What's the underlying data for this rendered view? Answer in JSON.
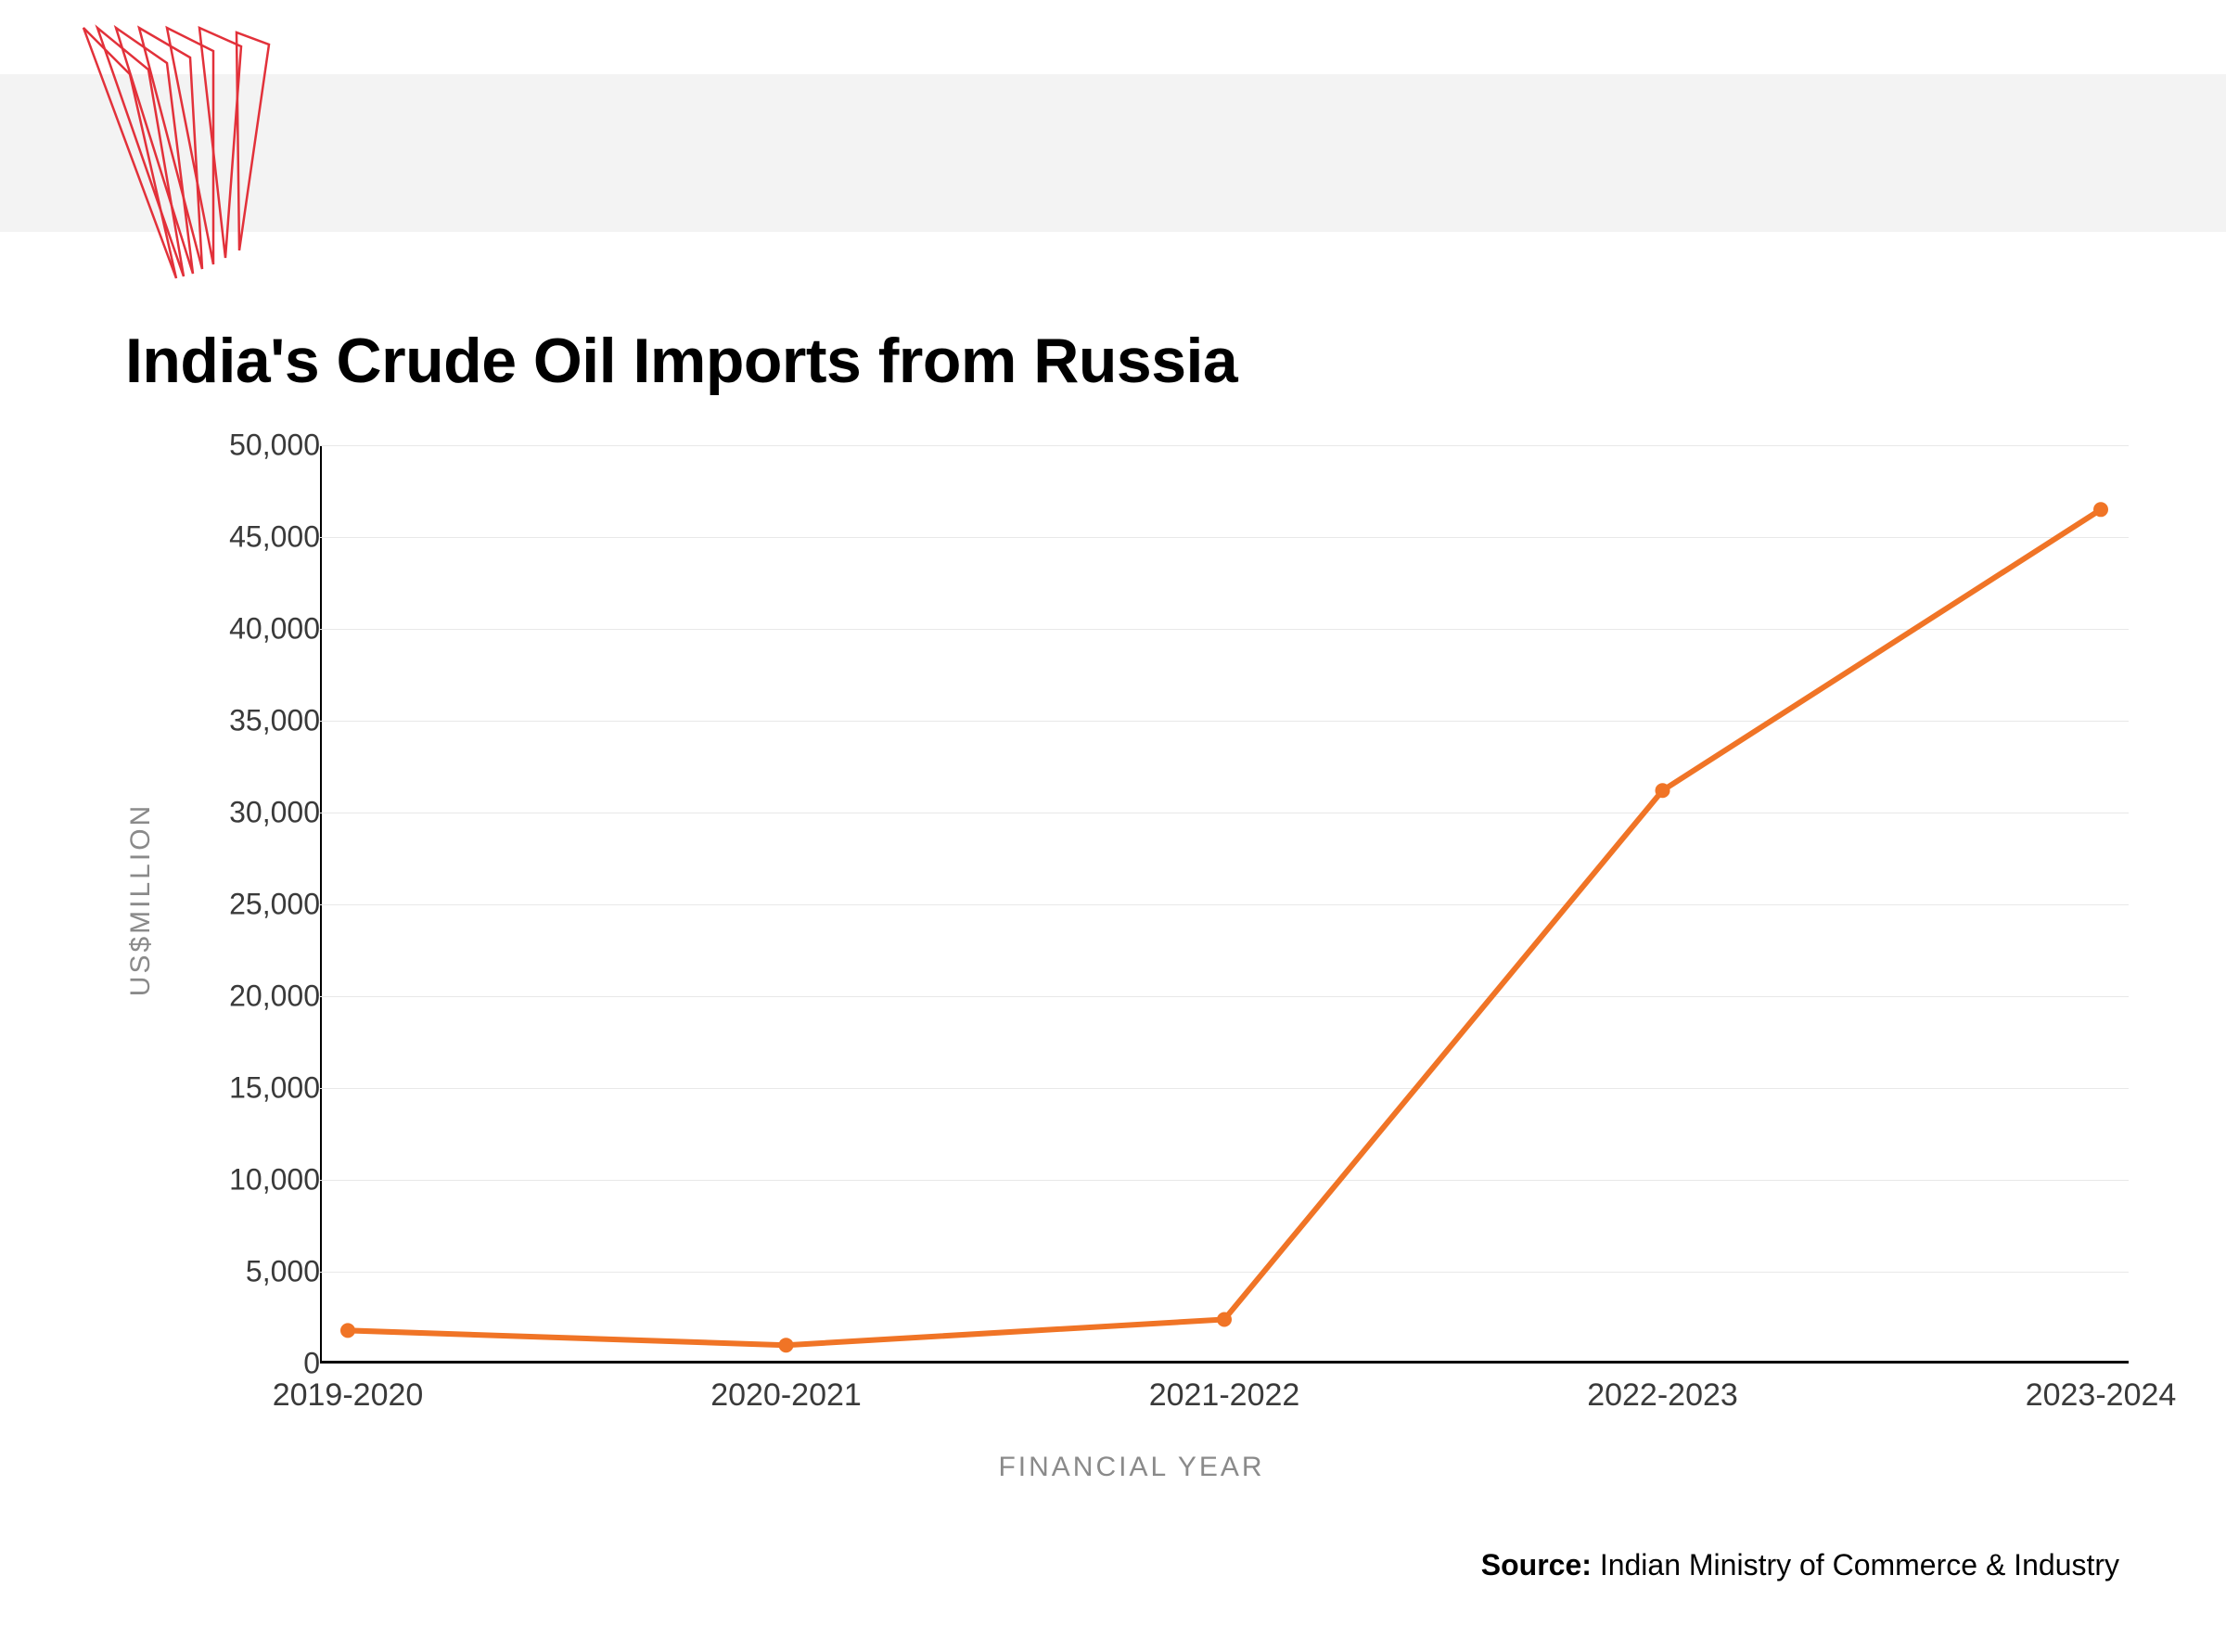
{
  "header": {
    "logo_color": "#e2313a",
    "topbar_color": "#f3f3f3"
  },
  "chart": {
    "type": "line",
    "title": "India's Crude Oil Imports from Russia",
    "title_fontsize": 68,
    "title_color": "#000000",
    "x_label": "FINANCIAL YEAR",
    "y_label": "US$MILLION",
    "axis_label_fontsize": 30,
    "axis_label_color": "#8a8a8a",
    "tick_fontsize": 32,
    "tick_color": "#3a3a3a",
    "line_color": "#f07426",
    "marker_color": "#f07426",
    "marker_radius": 8,
    "line_width": 6,
    "grid_color": "#e8e8e8",
    "axis_color": "#000000",
    "background_color": "#ffffff",
    "ylim": [
      0,
      50000
    ],
    "ytick_step": 5000,
    "y_ticks": [
      "0",
      "5,000",
      "10,000",
      "15,000",
      "20,000",
      "25,000",
      "30,000",
      "35,000",
      "40,000",
      "45,000",
      "50,000"
    ],
    "categories": [
      "2019-2020",
      "2020-2021",
      "2021-2022",
      "2022-2023",
      "2023-2024"
    ],
    "values": [
      1800,
      1000,
      2400,
      31200,
      46500
    ]
  },
  "source": {
    "label": "Source:",
    "text": "Indian Ministry of Commerce & Industry"
  }
}
